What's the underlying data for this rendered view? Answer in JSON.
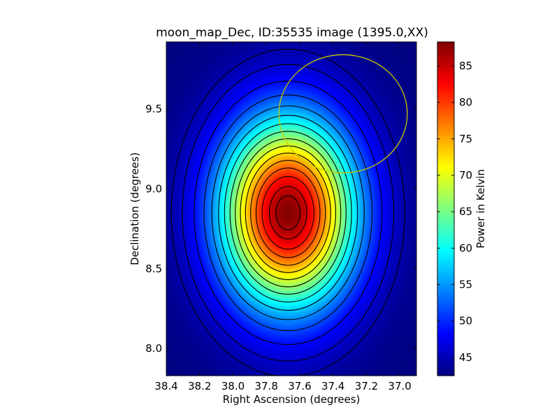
{
  "chart_data": {
    "type": "heatmap",
    "title": "moon_map_Dec, ID:35535 image (1395.0,XX)",
    "xlabel": "Right Ascension (degrees)",
    "ylabel": "Declination (degrees)",
    "colorbar_label": "Power in Kelvin",
    "colormap": "jet",
    "x_axis_inverted": true,
    "xlim": [
      38.4,
      36.9
    ],
    "ylim": [
      7.83,
      9.92
    ],
    "clim": [
      42.5,
      88.3
    ],
    "xticks": [
      38.4,
      38.2,
      38.0,
      37.8,
      37.6,
      37.4,
      37.2,
      37.0
    ],
    "xtick_labels": [
      "38.4",
      "38.2",
      "38.0",
      "37.8",
      "37.6",
      "37.4",
      "37.2",
      "37.0"
    ],
    "yticks": [
      8.0,
      8.5,
      9.0,
      9.5
    ],
    "ytick_labels": [
      "8.0",
      "8.5",
      "9.0",
      "9.5"
    ],
    "cbar_ticks": [
      45,
      50,
      55,
      60,
      65,
      70,
      75,
      80,
      85
    ],
    "cbar_tick_labels": [
      "45",
      "50",
      "55",
      "60",
      "65",
      "70",
      "75",
      "80",
      "85"
    ],
    "field": {
      "peak_ra": 37.67,
      "peak_dec": 8.85,
      "peak_value": 88.0,
      "background_value": 42.5,
      "sigma_ra_deg": 0.28,
      "sigma_dec_deg": 0.41
    },
    "contour_levels": [
      44.5,
      46,
      48.5,
      51.5,
      54.5,
      57.5,
      60.5,
      63.5,
      66.5,
      69.5,
      72.5,
      75.5,
      78.5,
      81.5,
      84.5,
      86.5
    ],
    "contour_color": "#000000",
    "circle_annotation": {
      "center_ra": 37.34,
      "center_dec": 9.47,
      "radius_ra_deg": 0.385,
      "radius_dec_deg": 0.37,
      "color": "#c8c800"
    },
    "grid": false
  }
}
